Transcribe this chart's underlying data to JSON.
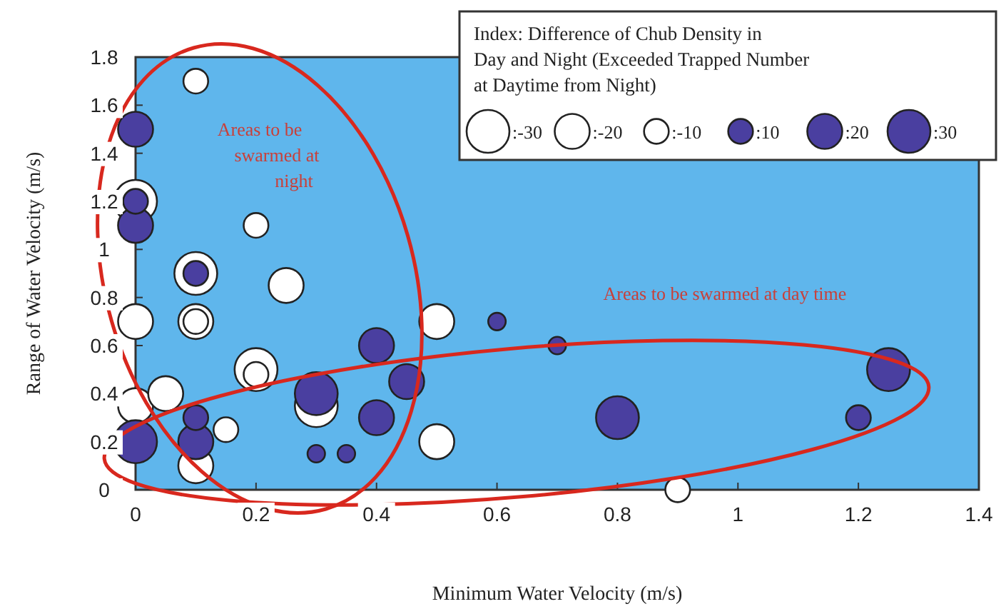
{
  "chart_data": {
    "type": "bubble",
    "xlabel": "Minimum Water Velocity (m/s)",
    "ylabel": "Range of Water Velocity (m/s)",
    "legend_title": "Index: Difference of Chub Density in Day and Night (Exceeded Trapped Number at Daytime from Night)",
    "grid": false,
    "xlim": [
      0,
      1.4
    ],
    "xticks": [
      0,
      0.2,
      0.4,
      0.6,
      0.8,
      1,
      1.2,
      1.4
    ],
    "ylim": [
      0,
      1.8
    ],
    "yticks": [
      0,
      0.2,
      0.4,
      0.6,
      0.8,
      1,
      1.2,
      1.4,
      1.6,
      1.8
    ],
    "size_legend": [
      {
        "value": 30,
        "label": ":-30"
      },
      {
        "value": 20,
        "label": ":-20"
      },
      {
        "value": 10,
        "label": ":-10"
      },
      {
        "value": 10,
        "label": ":10"
      },
      {
        "value": 20,
        "label": ":20"
      },
      {
        "value": 30,
        "label": ":30"
      }
    ],
    "annotations": [
      "Areas to be swarmed at night",
      "Areas to be swarmed at day time"
    ],
    "series": [
      {
        "color": "#ffffff",
        "x": [
          0,
          0.1,
          0.2,
          0.1,
          0.25,
          0,
          0.1,
          0.1,
          0.5,
          0.2,
          0.2,
          0,
          0.05,
          0.15,
          0.1,
          0.3,
          0.5,
          0.9
        ],
        "values": [
          1.2,
          1.7,
          1.1,
          0.9,
          0.85,
          0.7,
          0.7,
          0.7,
          0.7,
          0.5,
          0.48,
          0.35,
          0.4,
          0.25,
          0.1,
          0.35,
          0.2,
          0
        ],
        "sizes": [
          30,
          10,
          10,
          30,
          20,
          20,
          20,
          10,
          20,
          30,
          10,
          20,
          20,
          10,
          20,
          30,
          20,
          10
        ]
      },
      {
        "color": "#4a3fa0",
        "x": [
          0,
          0,
          0,
          0.1,
          0.1,
          0.1,
          0,
          0.4,
          0.45,
          0.3,
          0.4,
          0.3,
          0.35,
          0.6,
          0.7,
          1.25,
          0.8,
          1.2
        ],
        "values": [
          1.5,
          1.2,
          1.1,
          0.9,
          0.3,
          0.2,
          0.2,
          0.6,
          0.45,
          0.4,
          0.3,
          0.15,
          0.15,
          0.7,
          0.6,
          0.5,
          0.3,
          0.3
        ],
        "sizes": [
          20,
          10,
          20,
          10,
          10,
          20,
          30,
          20,
          20,
          30,
          20,
          5,
          5,
          5,
          5,
          30,
          30,
          10
        ]
      }
    ]
  }
}
